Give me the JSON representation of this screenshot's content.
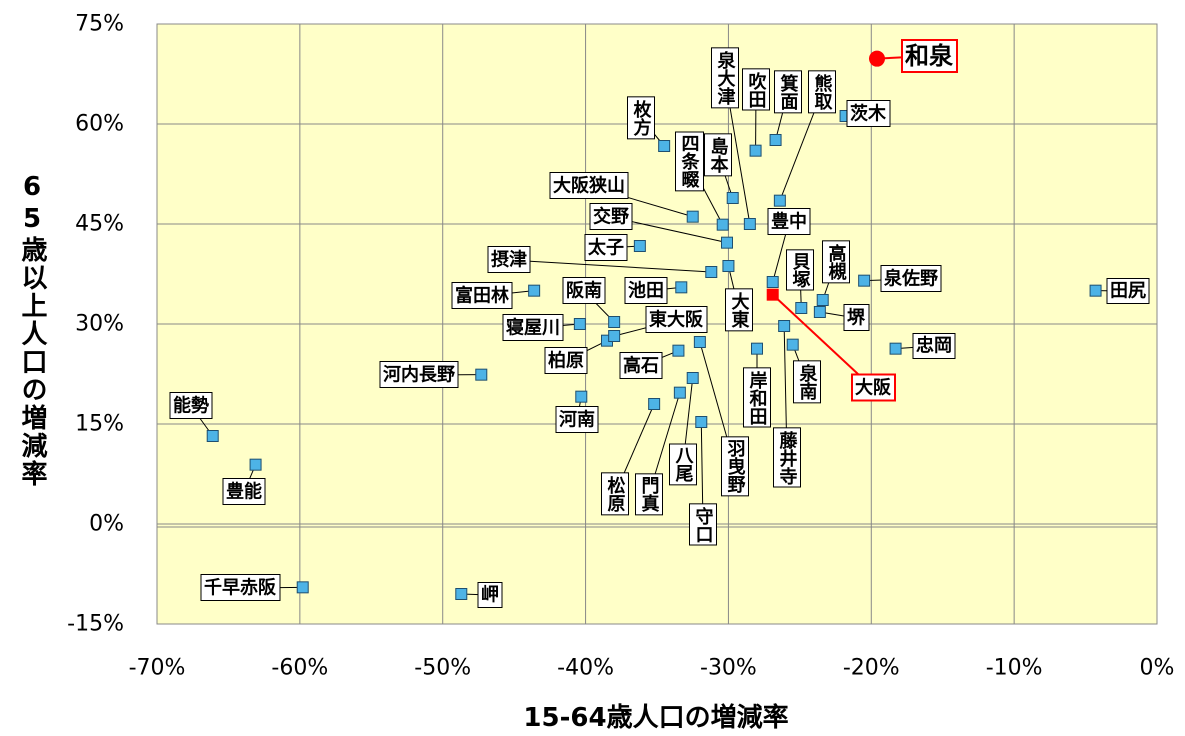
{
  "chart_data": {
    "type": "scatter",
    "xlabel": "15-64歳人口の増減率",
    "ylabel": "65歳以上人口の増減率",
    "xlim": [
      -70,
      0
    ],
    "xticks": [
      {
        "value": -70,
        "label": "-70%"
      },
      {
        "value": -60,
        "label": "-60%"
      },
      {
        "value": -50,
        "label": "-50%"
      },
      {
        "value": -40,
        "label": "-40%"
      },
      {
        "value": -30,
        "label": "-30%"
      },
      {
        "value": -20,
        "label": "-20%"
      },
      {
        "value": -10,
        "label": "-10%"
      },
      {
        "value": 0,
        "label": "0%"
      }
    ],
    "ylim": [
      -15,
      75
    ],
    "yticks": [
      {
        "value": -15,
        "label": "-15%"
      },
      {
        "value": 0,
        "label": "0%"
      },
      {
        "value": 15,
        "label": "15%"
      },
      {
        "value": 30,
        "label": "30%"
      },
      {
        "value": 45,
        "label": "45%"
      },
      {
        "value": 60,
        "label": "60%"
      },
      {
        "value": 75,
        "label": "75%"
      }
    ],
    "grid": true,
    "color": "#4db3e6",
    "highlight_color": "#ff0000",
    "points": [
      {
        "label": "和泉",
        "x": -19.6,
        "y": 69.8,
        "marker": "circle",
        "highlight": true
      },
      {
        "label": "茨木",
        "x": -21.8,
        "y": 61.2
      },
      {
        "label": "箕面",
        "x": -26.7,
        "y": 57.6
      },
      {
        "label": "吹田",
        "x": -28.1,
        "y": 56.0
      },
      {
        "label": "枚方",
        "x": -34.5,
        "y": 56.7
      },
      {
        "label": "熊取",
        "x": -26.4,
        "y": 48.5
      },
      {
        "label": "島本",
        "x": -29.7,
        "y": 48.9
      },
      {
        "label": "四条畷",
        "x": -30.4,
        "y": 44.9
      },
      {
        "label": "泉大津",
        "x": -28.5,
        "y": 45.0
      },
      {
        "label": "大阪狭山",
        "x": -32.5,
        "y": 46.1
      },
      {
        "label": "交野",
        "x": -30.1,
        "y": 42.2
      },
      {
        "label": "太子",
        "x": -36.2,
        "y": 41.7
      },
      {
        "label": "摂津",
        "x": -31.2,
        "y": 37.8
      },
      {
        "label": "大東",
        "x": -30.0,
        "y": 38.7
      },
      {
        "label": "豊中",
        "x": -26.9,
        "y": 36.3
      },
      {
        "label": "富田林",
        "x": -43.6,
        "y": 35.0
      },
      {
        "label": "池田",
        "x": -33.3,
        "y": 35.5
      },
      {
        "label": "阪南",
        "x": -38.0,
        "y": 30.3
      },
      {
        "label": "寝屋川",
        "x": -40.4,
        "y": 30.0
      },
      {
        "label": "柏原",
        "x": -38.5,
        "y": 27.5
      },
      {
        "label": "東大阪",
        "x": -38.0,
        "y": 28.2
      },
      {
        "label": "大阪",
        "x": -26.9,
        "y": 34.4,
        "highlight": true
      },
      {
        "label": "貝塚",
        "x": -24.9,
        "y": 32.4
      },
      {
        "label": "高槻",
        "x": -23.4,
        "y": 33.6
      },
      {
        "label": "堺",
        "x": -23.6,
        "y": 31.8
      },
      {
        "label": "泉佐野",
        "x": -20.5,
        "y": 36.5
      },
      {
        "label": "田尻",
        "x": -4.3,
        "y": 35.0
      },
      {
        "label": "忠岡",
        "x": -18.3,
        "y": 26.3
      },
      {
        "label": "泉南",
        "x": -25.5,
        "y": 26.9
      },
      {
        "label": "岸和田",
        "x": -28.0,
        "y": 26.3
      },
      {
        "label": "藤井寺",
        "x": -26.1,
        "y": 29.7
      },
      {
        "label": "羽曳野",
        "x": -32.0,
        "y": 27.3
      },
      {
        "label": "高石",
        "x": -33.5,
        "y": 26.0
      },
      {
        "label": "河内長野",
        "x": -47.3,
        "y": 22.4
      },
      {
        "label": "河南",
        "x": -40.3,
        "y": 19.1
      },
      {
        "label": "八尾",
        "x": -32.5,
        "y": 21.9
      },
      {
        "label": "門真",
        "x": -33.4,
        "y": 19.7
      },
      {
        "label": "松原",
        "x": -35.2,
        "y": 18.0
      },
      {
        "label": "守口",
        "x": -31.9,
        "y": 15.3
      },
      {
        "label": "能勢",
        "x": -66.1,
        "y": 13.2
      },
      {
        "label": "豊能",
        "x": -63.1,
        "y": 8.9
      },
      {
        "label": "千早赤阪",
        "x": -59.8,
        "y": -9.5
      },
      {
        "label": "岬",
        "x": -48.7,
        "y": -10.5
      }
    ]
  }
}
